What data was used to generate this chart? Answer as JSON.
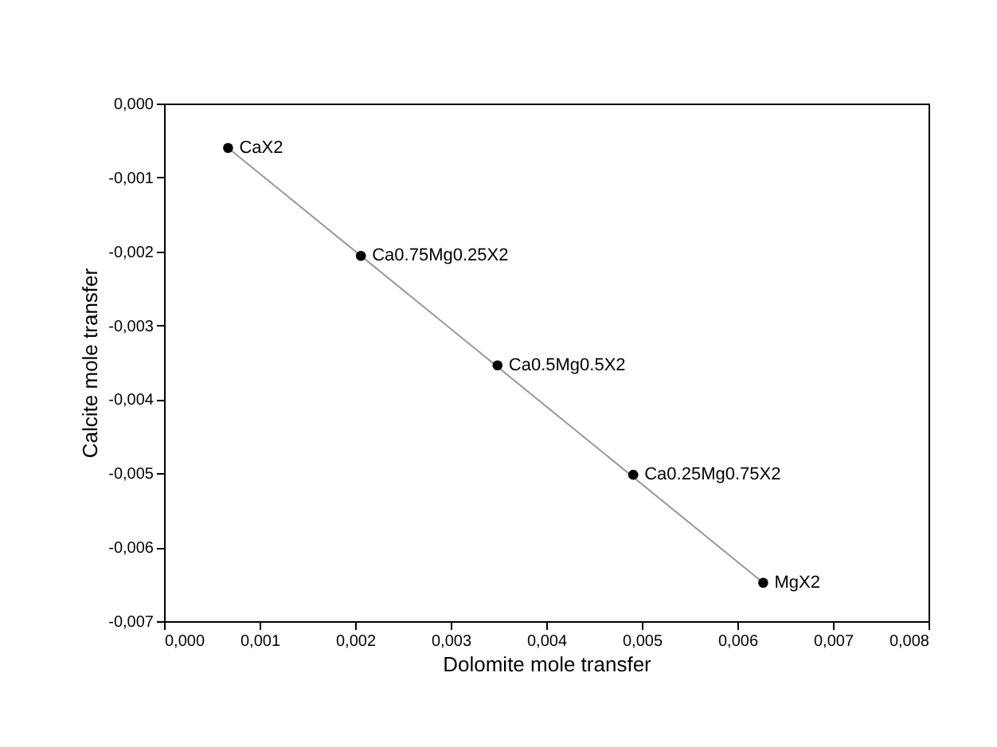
{
  "chart_data": {
    "type": "scatter",
    "xlabel": "Dolomite mole transfer",
    "ylabel": "Calcite mole transfer",
    "x": [
      0.00067,
      0.00206,
      0.00349,
      0.00491,
      0.00627
    ],
    "series": [
      {
        "color": "#000000",
        "values": [
          -0.0006,
          -0.00206,
          -0.00354,
          -0.00502,
          -0.00648
        ]
      },
      {
        "type": "line",
        "marker": "none",
        "line_style": "solid",
        "color": "#999999",
        "x": [
          0.00067,
          0.00627
        ],
        "values": [
          -0.0006,
          -0.00648
        ]
      }
    ],
    "marker": "circle",
    "grid": false,
    "xlim": [
      0,
      0.008
    ],
    "ylim": [
      -0.007,
      0
    ],
    "xticks": [
      {
        "value": 0,
        "label": "0,000"
      },
      {
        "value": 0.001,
        "label": "0,001"
      },
      {
        "value": 0.002,
        "label": "0,002"
      },
      {
        "value": 0.003,
        "label": "0,003"
      },
      {
        "value": 0.004,
        "label": "0,004"
      },
      {
        "value": 0.005,
        "label": "0,005"
      },
      {
        "value": 0.006,
        "label": "0,006"
      },
      {
        "value": 0.007,
        "label": "0,007"
      },
      {
        "value": 0.008,
        "label": "0,008"
      }
    ],
    "yticks": [
      {
        "value": 0,
        "label": "0,000"
      },
      {
        "value": -0.001,
        "label": "-0,001"
      },
      {
        "value": -0.002,
        "label": "-0,002"
      },
      {
        "value": -0.003,
        "label": "-0,003"
      },
      {
        "value": -0.004,
        "label": "-0,004"
      },
      {
        "value": -0.005,
        "label": "-0,005"
      },
      {
        "value": -0.006,
        "label": "-0,006"
      },
      {
        "value": -0.007,
        "label": "-0,007"
      }
    ],
    "annotations": [
      {
        "text": "CaX2",
        "x": 0.00067,
        "y": -0.0006
      },
      {
        "text": "Ca0.75Mg0.25X2",
        "x": 0.00206,
        "y": -0.00206
      },
      {
        "text": "Ca0.5Mg0.5X2",
        "x": 0.00349,
        "y": -0.00354
      },
      {
        "text": "Ca0.25Mg0.75X2",
        "x": 0.00491,
        "y": -0.00502
      },
      {
        "text": "MgX2",
        "x": 0.00627,
        "y": -0.00648
      }
    ]
  }
}
